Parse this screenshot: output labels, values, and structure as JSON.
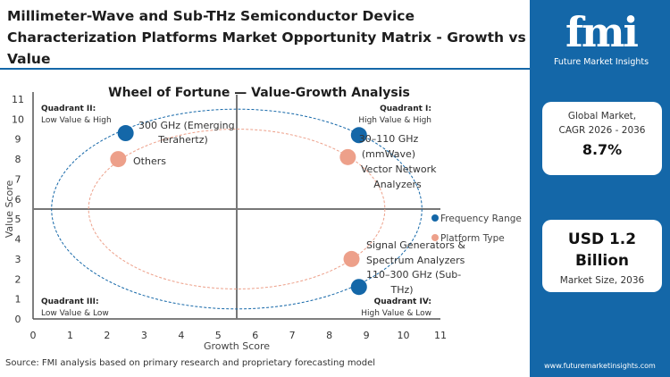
{
  "title": "Millimeter-Wave and Sub-THz Semiconductor Device Characterization Platforms Market Opportunity Matrix - Growth vs Value",
  "panel": {
    "logo_text": "fmi",
    "logo_sub": "Future Market Insights",
    "cagr_label1": "Global Market,",
    "cagr_label2": "CAGR 2026 - 2036",
    "cagr_value": "8.7%",
    "size_value1": "USD 1.2",
    "size_value2": "Billion",
    "size_label": "Market Size, 2036",
    "url": "www.futuremarketinsights.com"
  },
  "source": "Source: FMI analysis based on primary research and proprietary forecasting model",
  "colors": {
    "frequency": "#1467a8",
    "platform": "#eda08a",
    "brand": "#1467a8"
  },
  "chart_data": {
    "type": "scatter",
    "title": "Wheel of Fortune — Value-Growth Analysis",
    "xlabel": "Growth Score",
    "ylabel": "Value Score",
    "xlim": [
      0,
      11
    ],
    "ylim": [
      0,
      11
    ],
    "xticks": [
      "0",
      "1",
      "2",
      "3",
      "4",
      "5",
      "6",
      "7",
      "8",
      "9",
      "10",
      "11"
    ],
    "yticks": [
      "0",
      "1",
      "2",
      "3",
      "4",
      "5",
      "6",
      "7",
      "8",
      "9",
      "10",
      "11"
    ],
    "divider": {
      "x": 5.5,
      "y": 5.5
    },
    "legend": {
      "placement": "right",
      "entries": [
        "Frequency Range",
        "Platform Type"
      ]
    },
    "quadrants": [
      {
        "title": "Quadrant II:",
        "sub": "Low Value & High"
      },
      {
        "title": "Quadrant I:",
        "sub": "High Value & High"
      },
      {
        "title": "Quadrant III:",
        "sub": "Low Value & Low"
      },
      {
        "title": "Quadrant IV:",
        "sub": "High Value & Low"
      }
    ],
    "series": [
      {
        "name": "Frequency Range",
        "points": [
          {
            "label": [
              "300 GHz (Emerging",
              "Terahertz)"
            ],
            "x": 2.5,
            "y": 9.3
          },
          {
            "label": [
              "30–110 GHz",
              "(mmWave)"
            ],
            "x": 8.8,
            "y": 9.2
          },
          {
            "label": [
              "110–300 GHz (Sub-",
              "THz)"
            ],
            "x": 8.8,
            "y": 1.6
          }
        ]
      },
      {
        "name": "Platform Type",
        "points": [
          {
            "label": [
              "Others"
            ],
            "x": 2.3,
            "y": 8.0
          },
          {
            "label": [
              "Vector Network",
              "Analyzers"
            ],
            "x": 8.5,
            "y": 8.1
          },
          {
            "label": [
              "Signal Generators &",
              "Spectrum Analyzers"
            ],
            "x": 8.6,
            "y": 3.0
          }
        ]
      }
    ],
    "ellipses": [
      {
        "series": "Frequency Range",
        "cx": 5.5,
        "cy": 5.5,
        "rx": 5,
        "ry": 5
      },
      {
        "series": "Platform Type",
        "cx": 5.5,
        "cy": 5.5,
        "rx": 4,
        "ry": 4
      }
    ]
  }
}
